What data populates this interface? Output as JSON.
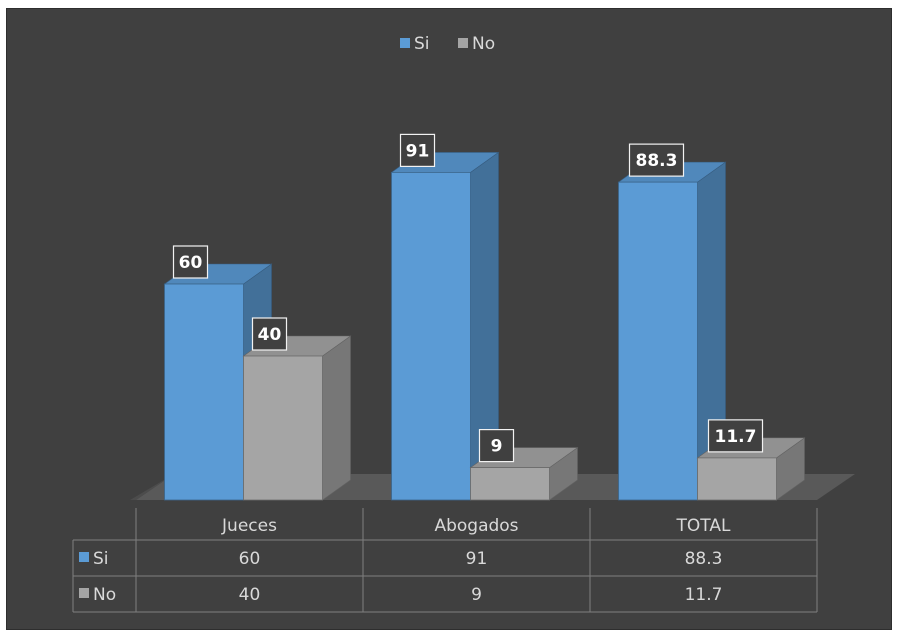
{
  "chart_data": {
    "type": "bar",
    "categories": [
      "Jueces",
      "Abogados",
      "TOTAL"
    ],
    "series": [
      {
        "name": "Si",
        "values": [
          60,
          91,
          88.3
        ],
        "color": "#5b9bd5"
      },
      {
        "name": "No",
        "values": [
          40,
          9,
          11.7
        ],
        "color": "#a5a5a5"
      }
    ],
    "title": "",
    "xlabel": "",
    "ylabel": "",
    "ylim": [
      0,
      100
    ],
    "grid": false,
    "legend": "top-center",
    "data_table": true
  },
  "style": {
    "background": "#404040",
    "text_color": "#d9d9d9",
    "floor_color": "#595959",
    "table_line_color": "#7f7f7f"
  }
}
